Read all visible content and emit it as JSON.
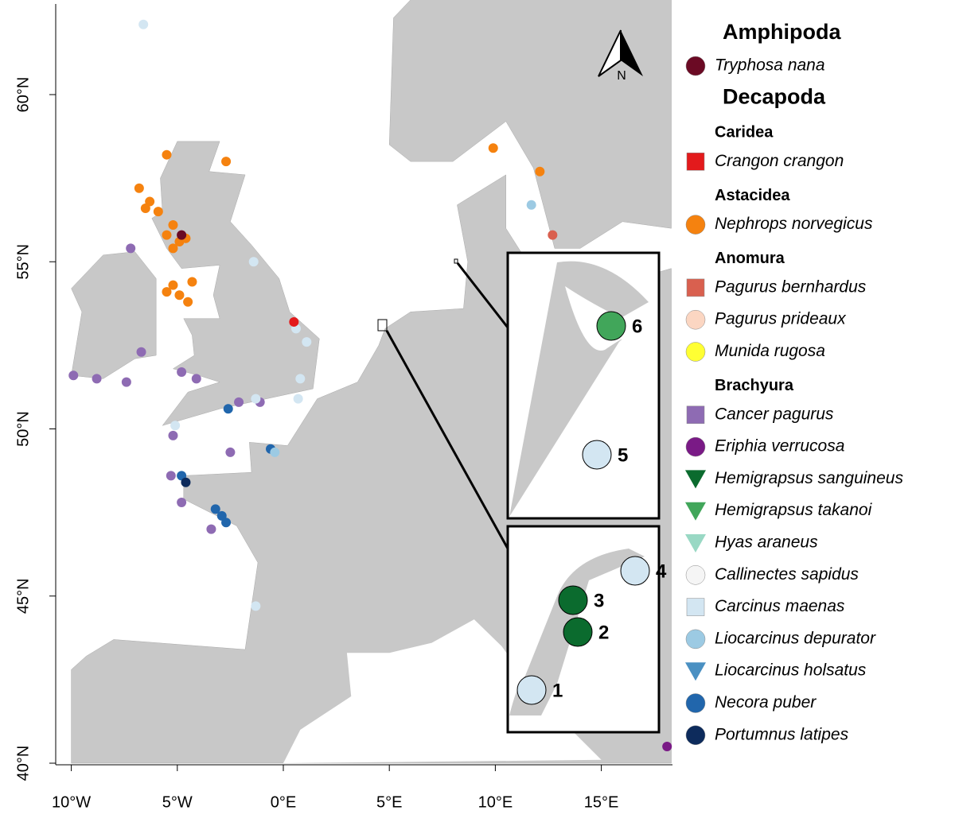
{
  "map": {
    "north_label": "N",
    "lat_ticks": [
      {
        "value": 40,
        "label": "40°N"
      },
      {
        "value": 45,
        "label": "45°N"
      },
      {
        "value": 50,
        "label": "50°N"
      },
      {
        "value": 55,
        "label": "55°N"
      },
      {
        "value": 60,
        "label": "60°N"
      }
    ],
    "lon_ticks": [
      {
        "value": -10,
        "label": "10°W"
      },
      {
        "value": -5,
        "label": "5°W"
      },
      {
        "value": 0,
        "label": "0°E"
      },
      {
        "value": 5,
        "label": "5°E"
      },
      {
        "value": 10,
        "label": "10°E"
      },
      {
        "value": 15,
        "label": "15°E"
      }
    ],
    "inset_sites": [
      "1",
      "2",
      "3",
      "4",
      "5",
      "6"
    ]
  },
  "legend": {
    "groups": [
      {
        "title": "Amphipoda",
        "subgroups": [
          {
            "entries": [
              {
                "name": "Tryphosa nana",
                "color": "#6b0a24",
                "shape": "circle"
              }
            ]
          }
        ]
      },
      {
        "title": "Decapoda",
        "subgroups": [
          {
            "title": "Caridea",
            "entries": [
              {
                "name": "Crangon crangon",
                "color": "#e31a1c",
                "shape": "square"
              }
            ]
          },
          {
            "title": "Astacidea",
            "entries": [
              {
                "name": "Nephrops norvegicus",
                "color": "#f5820f",
                "shape": "circle"
              }
            ]
          },
          {
            "title": "Anomura",
            "entries": [
              {
                "name": "Pagurus bernhardus",
                "color": "#d9604f",
                "shape": "square"
              },
              {
                "name": "Pagurus prideaux",
                "color": "#fbd6c2",
                "shape": "circle"
              },
              {
                "name": "Munida rugosa",
                "color": "#ffff33",
                "shape": "circle"
              }
            ]
          },
          {
            "title": "Brachyura",
            "entries": [
              {
                "name": "Cancer pagurus",
                "color": "#8e6bb3",
                "shape": "square"
              },
              {
                "name": "Eriphia verrucosa",
                "color": "#7a1a86",
                "shape": "circle"
              },
              {
                "name": "Hemigrapsus sanguineus",
                "color": "#0b6b2e",
                "shape": "triangle"
              },
              {
                "name": "Hemigrapsus takanoi",
                "color": "#41a65a",
                "shape": "triangle"
              },
              {
                "name": "Hyas araneus",
                "color": "#99d8c4",
                "shape": "triangle"
              },
              {
                "name": "Callinectes sapidus",
                "color": "#f5f5f5",
                "shape": "circle"
              },
              {
                "name": "Carcinus maenas",
                "color": "#d3e6f2",
                "shape": "square"
              },
              {
                "name": "Liocarcinus depurator",
                "color": "#9ccae3",
                "shape": "circle"
              },
              {
                "name": "Liocarcinus holsatus",
                "color": "#4a90c2",
                "shape": "triangle"
              },
              {
                "name": "Necora puber",
                "color": "#2166ac",
                "shape": "circle"
              },
              {
                "name": "Portumnus latipes",
                "color": "#0d2b5c",
                "shape": "circle"
              }
            ]
          }
        ]
      }
    ]
  }
}
